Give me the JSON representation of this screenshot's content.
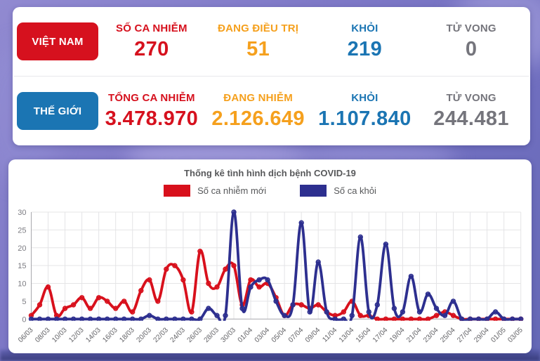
{
  "colors": {
    "red": "#d6111e",
    "orange": "#f5a01d",
    "blue": "#1b75b3",
    "gray": "#75757c",
    "line_new": "#d8101c",
    "line_recovered": "#2d2f8f",
    "badge_vietnam_bg": "#d6111e",
    "badge_world_bg": "#1b75b3"
  },
  "vietnam": {
    "badge": "VIỆT NAM",
    "stats": [
      {
        "label": "SỐ CA NHIỄM",
        "value": "270",
        "color": "red"
      },
      {
        "label": "ĐANG ĐIỀU TRỊ",
        "value": "51",
        "color": "orange"
      },
      {
        "label": "KHỎI",
        "value": "219",
        "color": "blue"
      },
      {
        "label": "TỬ VONG",
        "value": "0",
        "color": "gray"
      }
    ]
  },
  "world": {
    "badge": "THẾ GIỚI",
    "stats": [
      {
        "label": "TỔNG CA NHIỄM",
        "value": "3.478.970",
        "color": "red"
      },
      {
        "label": "ĐANG NHIỄM",
        "value": "2.126.649",
        "color": "orange"
      },
      {
        "label": "KHỎI",
        "value": "1.107.840",
        "color": "blue"
      },
      {
        "label": "TỬ VONG",
        "value": "244.481",
        "color": "gray"
      }
    ]
  },
  "chart": {
    "title": "Thống kê tình hình dịch bệnh COVID-19",
    "legend": [
      {
        "label": "Số ca nhiễm mới",
        "color": "line_new"
      },
      {
        "label": "Số ca khỏi",
        "color": "line_recovered"
      }
    ],
    "chart_data": {
      "type": "line",
      "x": [
        "06/03",
        "07/03",
        "08/03",
        "09/03",
        "10/03",
        "11/03",
        "12/03",
        "13/03",
        "14/03",
        "15/03",
        "16/03",
        "17/03",
        "18/03",
        "19/03",
        "20/03",
        "21/03",
        "22/03",
        "23/03",
        "24/03",
        "25/03",
        "26/03",
        "27/03",
        "28/03",
        "29/03",
        "30/03",
        "31/03",
        "01/04",
        "02/04",
        "03/04",
        "04/04",
        "05/04",
        "06/04",
        "07/04",
        "08/04",
        "09/04",
        "10/04",
        "11/04",
        "12/04",
        "13/04",
        "14/04",
        "15/04",
        "16/04",
        "17/04",
        "18/04",
        "19/04",
        "20/04",
        "21/04",
        "22/04",
        "23/04",
        "24/04",
        "25/04",
        "26/04",
        "27/04",
        "28/04",
        "29/04",
        "30/04",
        "01/05",
        "02/05",
        "03/05"
      ],
      "series": [
        {
          "name": "Số ca nhiễm mới",
          "color": "#d8101c",
          "values": [
            1,
            4,
            9,
            1,
            3,
            4,
            6,
            3,
            6,
            5,
            3,
            5,
            2,
            8,
            11,
            5,
            14,
            15,
            11,
            2,
            19,
            10,
            9,
            14,
            15,
            4,
            11,
            9,
            10,
            6,
            1,
            4,
            4,
            3,
            4,
            2,
            1,
            2,
            5,
            1,
            1,
            0,
            0,
            0,
            0,
            0,
            0,
            0,
            1,
            2,
            1,
            0,
            0,
            0,
            0,
            0,
            0,
            0,
            0
          ]
        },
        {
          "name": "Số ca khỏi",
          "color": "#2d2f8f",
          "values": [
            0,
            0,
            0,
            0,
            0,
            0,
            0,
            0,
            0,
            0,
            0,
            0,
            0,
            0,
            1,
            0,
            0,
            0,
            0,
            0,
            0,
            3,
            1,
            1,
            30,
            3,
            9,
            11,
            11,
            5,
            1,
            4,
            27,
            2,
            16,
            2,
            0,
            0,
            1,
            23,
            2,
            4,
            21,
            3,
            2,
            12,
            2,
            7,
            3,
            1,
            5,
            0,
            0,
            0,
            0,
            2,
            0,
            0,
            0
          ]
        }
      ],
      "ylim": [
        0,
        30
      ],
      "yticks": [
        0,
        5,
        10,
        15,
        20,
        25,
        30
      ],
      "xtick_every": 2,
      "grid": true,
      "legend_position": "top"
    }
  }
}
